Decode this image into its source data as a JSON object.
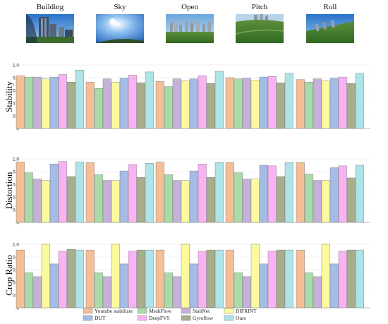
{
  "scenes": [
    "Building",
    "Sky",
    "Open",
    "Pitch",
    "Roll"
  ],
  "thumbnail_icons": [
    "building-photo",
    "sky-photo",
    "open-field-photo",
    "pitch-photo",
    "roll-photo"
  ],
  "methods": [
    {
      "name": "Youtube stabilizer",
      "color": "#f4bf96"
    },
    {
      "name": "MeshFlow",
      "color": "#a9dba9"
    },
    {
      "name": "StabNet",
      "color": "#c6b1d8"
    },
    {
      "name": "DIFRINT",
      "color": "#fbfb9e"
    },
    {
      "name": "DUT",
      "color": "#a4bce6"
    },
    {
      "name": "DeepFVS",
      "color": "#f7b3f2"
    },
    {
      "name": "Gyroflow",
      "color": "#a7ae8c"
    },
    {
      "name": "Ours",
      "color": "#aee3e7"
    }
  ],
  "chart_data": [
    {
      "type": "bar",
      "ylabel": "Stability",
      "ylim": [
        0,
        1.0
      ],
      "yticks": [
        "0",
        "0.2",
        "0.4",
        "0.6",
        "0.8",
        "1.0"
      ],
      "grid": true,
      "categories": [
        "Building",
        "Sky",
        "Open",
        "Pitch",
        "Roll"
      ],
      "series": [
        {
          "name": "Youtube stabilizer",
          "values": [
            0.83,
            0.73,
            0.74,
            0.8,
            0.77
          ]
        },
        {
          "name": "MeshFlow",
          "values": [
            0.81,
            0.63,
            0.66,
            0.78,
            0.73
          ]
        },
        {
          "name": "StabNet",
          "values": [
            0.81,
            0.78,
            0.78,
            0.79,
            0.78
          ]
        },
        {
          "name": "DIFRINT",
          "values": [
            0.78,
            0.73,
            0.75,
            0.76,
            0.75
          ]
        },
        {
          "name": "DUT",
          "values": [
            0.81,
            0.79,
            0.78,
            0.81,
            0.79
          ]
        },
        {
          "name": "DeepFVS",
          "values": [
            0.85,
            0.84,
            0.83,
            0.82,
            0.81
          ]
        },
        {
          "name": "Gyroflow",
          "values": [
            0.73,
            0.72,
            0.71,
            0.72,
            0.71
          ]
        },
        {
          "name": "Ours",
          "values": [
            0.92,
            0.89,
            0.9,
            0.87,
            0.87
          ]
        }
      ]
    },
    {
      "type": "bar",
      "ylabel": "Distortion",
      "ylim": [
        0,
        1.0
      ],
      "yticks": [
        "0",
        "0.2",
        "0.4",
        "0.6",
        "0.8",
        "1.0"
      ],
      "grid": true,
      "categories": [
        "Building",
        "Sky",
        "Open",
        "Pitch",
        "Roll"
      ],
      "series": [
        {
          "name": "Youtube stabilizer",
          "values": [
            0.95,
            0.94,
            0.95,
            0.94,
            0.94
          ]
        },
        {
          "name": "MeshFlow",
          "values": [
            0.78,
            0.75,
            0.75,
            0.78,
            0.76
          ]
        },
        {
          "name": "StabNet",
          "values": [
            0.68,
            0.66,
            0.66,
            0.68,
            0.66
          ]
        },
        {
          "name": "DIFRINT",
          "values": [
            0.66,
            0.66,
            0.66,
            0.68,
            0.66
          ]
        },
        {
          "name": "DUT",
          "values": [
            0.92,
            0.81,
            0.81,
            0.9,
            0.86
          ]
        },
        {
          "name": "DeepFVS",
          "values": [
            0.96,
            0.91,
            0.92,
            0.89,
            0.89
          ]
        },
        {
          "name": "Gyroflow",
          "values": [
            0.72,
            0.71,
            0.71,
            0.72,
            0.7
          ]
        },
        {
          "name": "Ours",
          "values": [
            0.95,
            0.93,
            0.94,
            0.94,
            0.9
          ]
        }
      ]
    },
    {
      "type": "bar",
      "ylabel": "Crop Ratio",
      "ylim": [
        0,
        1.0
      ],
      "yticks": [
        "0",
        "0.2",
        "0.4",
        "0.6",
        "0.8",
        "1.0"
      ],
      "grid": true,
      "categories": [
        "Building",
        "Sky",
        "Open",
        "Pitch",
        "Roll"
      ],
      "series": [
        {
          "name": "Youtube stabilizer",
          "values": [
            0.91,
            0.91,
            0.91,
            0.91,
            0.91
          ]
        },
        {
          "name": "MeshFlow",
          "values": [
            0.55,
            0.55,
            0.55,
            0.55,
            0.55
          ]
        },
        {
          "name": "StabNet",
          "values": [
            0.49,
            0.49,
            0.49,
            0.49,
            0.49
          ]
        },
        {
          "name": "DIFRINT",
          "values": [
            1.0,
            1.0,
            1.0,
            1.0,
            1.0
          ]
        },
        {
          "name": "DUT",
          "values": [
            0.69,
            0.69,
            0.69,
            0.69,
            0.69
          ]
        },
        {
          "name": "DeepFVS",
          "values": [
            0.89,
            0.89,
            0.89,
            0.89,
            0.89
          ]
        },
        {
          "name": "Gyroflow",
          "values": [
            0.92,
            0.91,
            0.91,
            0.91,
            0.91
          ]
        },
        {
          "name": "Ours",
          "values": [
            0.91,
            0.91,
            0.91,
            0.91,
            0.91
          ]
        }
      ]
    }
  ]
}
